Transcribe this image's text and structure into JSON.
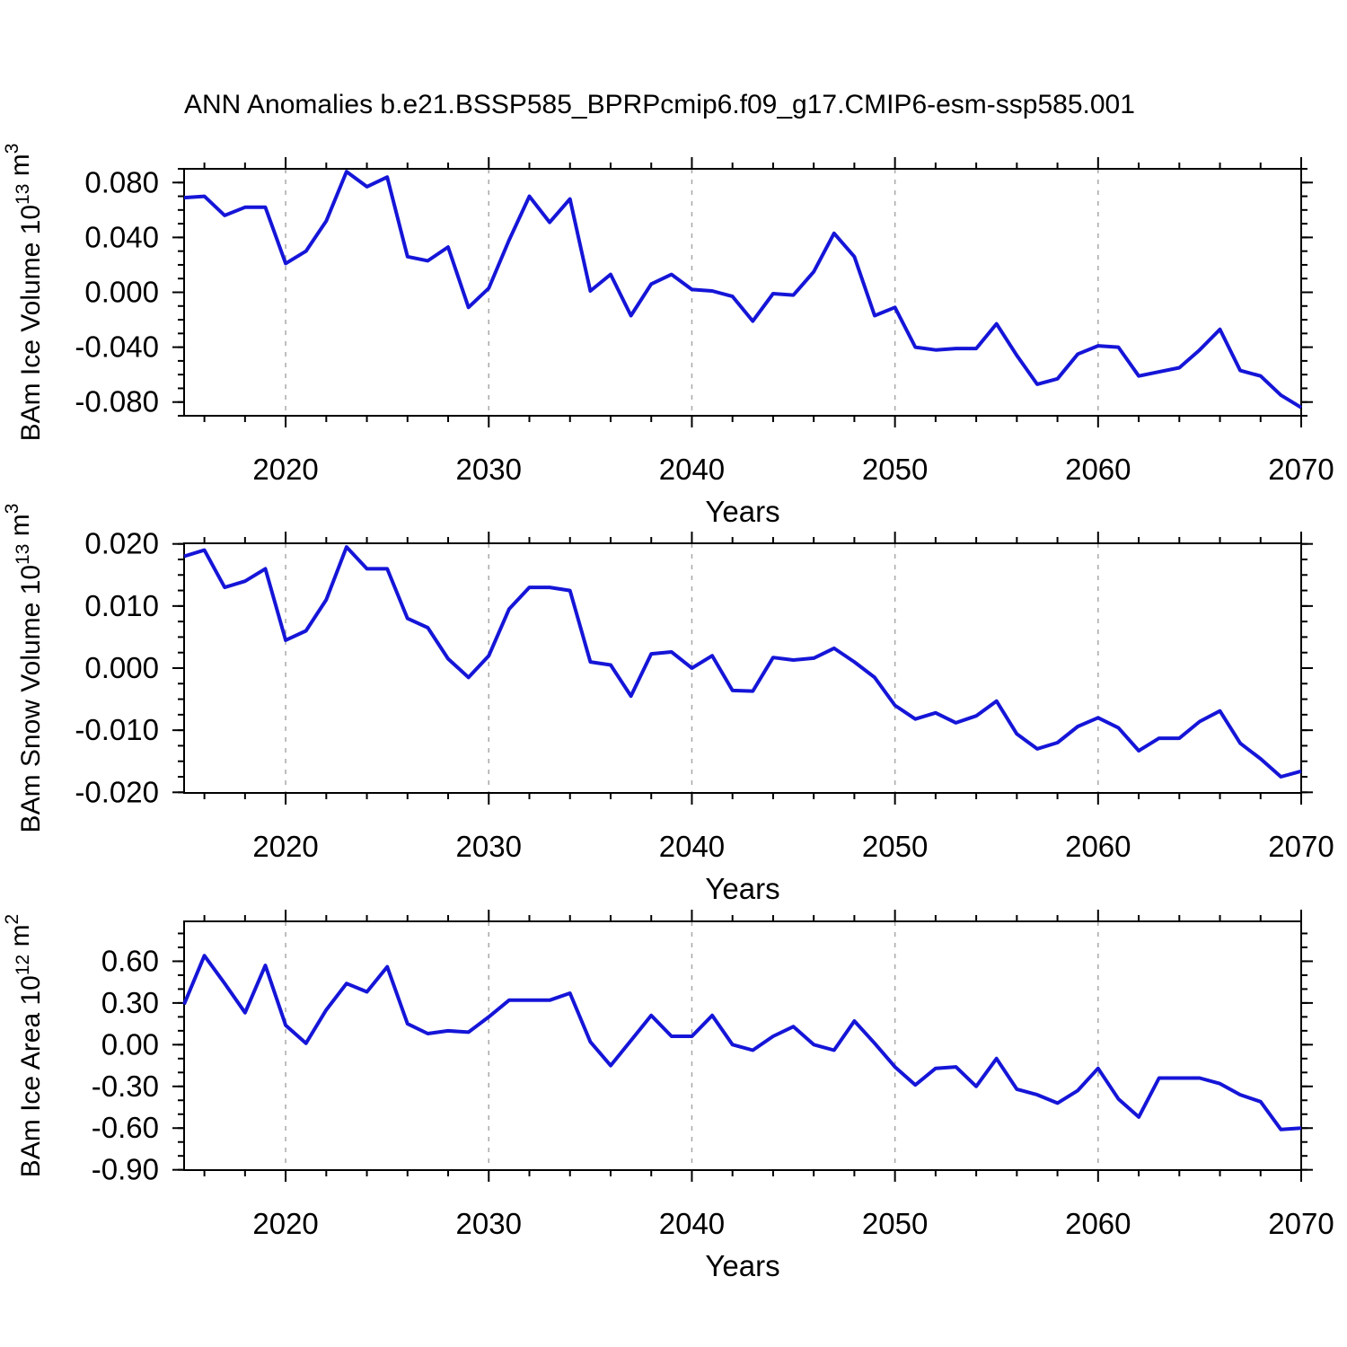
{
  "chart_data": {
    "type": "line",
    "title": "ANN Anomalies b.e21.BSSP585_BPRPcmip6.f09_g17.CMIP6-esm-ssp585.001",
    "xlabel": "Years",
    "line_color": "#1515d8",
    "grid_color": "#a8a8a8",
    "x_range": [
      2015,
      2070
    ],
    "x_major_ticks": [
      2020,
      2030,
      2040,
      2050,
      2060,
      2070
    ],
    "x_tick_labels": [
      "2020",
      "2030",
      "2040",
      "2050",
      "2060",
      "2070"
    ],
    "x_minor_step": 2,
    "grid_years": [
      2020,
      2030,
      2040,
      2050,
      2060
    ],
    "x": [
      2015,
      2016,
      2017,
      2018,
      2019,
      2020,
      2021,
      2022,
      2023,
      2024,
      2025,
      2026,
      2027,
      2028,
      2029,
      2030,
      2031,
      2032,
      2033,
      2034,
      2035,
      2036,
      2037,
      2038,
      2039,
      2040,
      2041,
      2042,
      2043,
      2044,
      2045,
      2046,
      2047,
      2048,
      2049,
      2050,
      2051,
      2052,
      2053,
      2054,
      2055,
      2056,
      2057,
      2058,
      2059,
      2060,
      2061,
      2062,
      2063,
      2064,
      2065,
      2066,
      2067,
      2068,
      2069,
      2070
    ],
    "panels": [
      {
        "id": "ice-volume",
        "ylabel": "BAm Ice Volume 10¹³ m³",
        "ylabel_parts": [
          {
            "text": "BAm Ice Volume 10",
            "sup": false
          },
          {
            "text": "13",
            "sup": true
          },
          {
            "text": " m",
            "sup": false
          },
          {
            "text": "3",
            "sup": true
          }
        ],
        "ylim": [
          -0.09,
          0.09
        ],
        "yticks": [
          {
            "v": 0.08,
            "label": "0.080"
          },
          {
            "v": 0.04,
            "label": "0.040"
          },
          {
            "v": 0.0,
            "label": "0.000"
          },
          {
            "v": -0.04,
            "label": "-0.040"
          },
          {
            "v": -0.08,
            "label": "-0.080"
          }
        ],
        "ytick_minor_step": 0.01,
        "values": [
          0.069,
          0.07,
          0.056,
          0.062,
          0.062,
          0.021,
          0.03,
          0.052,
          0.088,
          0.077,
          0.084,
          0.026,
          0.023,
          0.033,
          -0.011,
          0.003,
          0.038,
          0.07,
          0.051,
          0.068,
          0.001,
          0.013,
          -0.017,
          0.006,
          0.013,
          0.002,
          0.001,
          -0.003,
          -0.021,
          -0.001,
          -0.002,
          0.015,
          0.043,
          0.026,
          -0.017,
          -0.011,
          -0.04,
          -0.042,
          -0.041,
          -0.041,
          -0.023,
          -0.046,
          -0.067,
          -0.063,
          -0.045,
          -0.039,
          -0.04,
          -0.061,
          -0.058,
          -0.055,
          -0.042,
          -0.027,
          -0.057,
          -0.061,
          -0.075,
          -0.084
        ]
      },
      {
        "id": "snow-volume",
        "ylabel": "BAm Snow Volume 10¹³ m³",
        "ylabel_parts": [
          {
            "text": "BAm Snow Volume 10",
            "sup": false
          },
          {
            "text": "13",
            "sup": true
          },
          {
            "text": " m",
            "sup": false
          },
          {
            "text": "3",
            "sup": true
          }
        ],
        "ylim": [
          -0.0201,
          0.0201
        ],
        "yticks": [
          {
            "v": 0.02,
            "label": "0.020"
          },
          {
            "v": 0.01,
            "label": "0.010"
          },
          {
            "v": 0.0,
            "label": "0.000"
          },
          {
            "v": -0.01,
            "label": "-0.010"
          },
          {
            "v": -0.02,
            "label": "-0.020"
          }
        ],
        "ytick_minor_step": 0.0025,
        "values": [
          0.018,
          0.019,
          0.013,
          0.014,
          0.016,
          0.0045,
          0.006,
          0.011,
          0.0195,
          0.016,
          0.016,
          0.008,
          0.0065,
          0.0015,
          -0.0015,
          0.002,
          0.0095,
          0.013,
          0.013,
          0.0125,
          0.001,
          0.0005,
          -0.0045,
          0.0023,
          0.0026,
          0.0,
          0.002,
          -0.0036,
          -0.0037,
          0.0017,
          0.0013,
          0.0016,
          0.0032,
          0.001,
          -0.0015,
          -0.006,
          -0.0082,
          -0.0072,
          -0.0088,
          -0.0077,
          -0.0053,
          -0.0106,
          -0.013,
          -0.012,
          -0.0094,
          -0.008,
          -0.0096,
          -0.0133,
          -0.0113,
          -0.0113,
          -0.0086,
          -0.0069,
          -0.0121,
          -0.0146,
          -0.0175,
          -0.0166
        ]
      },
      {
        "id": "ice-area",
        "ylabel": "BAm Ice Area 10¹² m²",
        "ylabel_parts": [
          {
            "text": "BAm Ice Area 10",
            "sup": false
          },
          {
            "text": "12",
            "sup": true
          },
          {
            "text": " m",
            "sup": false
          },
          {
            "text": "2",
            "sup": true
          }
        ],
        "ylim": [
          -0.902,
          0.887
        ],
        "yticks": [
          {
            "v": 0.6,
            "label": "0.60"
          },
          {
            "v": 0.3,
            "label": "0.30"
          },
          {
            "v": 0.0,
            "label": "0.00"
          },
          {
            "v": -0.3,
            "label": "-0.30"
          },
          {
            "v": -0.6,
            "label": "-0.60"
          },
          {
            "v": -0.9,
            "label": "-0.90"
          }
        ],
        "ytick_minor_step": 0.1,
        "values": [
          0.29,
          0.64,
          0.44,
          0.23,
          0.57,
          0.14,
          0.01,
          0.25,
          0.44,
          0.38,
          0.56,
          0.15,
          0.08,
          0.1,
          0.09,
          0.2,
          0.32,
          0.32,
          0.32,
          0.37,
          0.02,
          -0.15,
          0.03,
          0.21,
          0.06,
          0.06,
          0.21,
          0.0,
          -0.04,
          0.06,
          0.13,
          0.0,
          -0.04,
          0.17,
          0.01,
          -0.16,
          -0.29,
          -0.17,
          -0.16,
          -0.3,
          -0.1,
          -0.32,
          -0.36,
          -0.42,
          -0.33,
          -0.17,
          -0.39,
          -0.52,
          -0.24,
          -0.24,
          -0.24,
          -0.28,
          -0.36,
          -0.41,
          -0.61,
          -0.6
        ]
      }
    ]
  }
}
